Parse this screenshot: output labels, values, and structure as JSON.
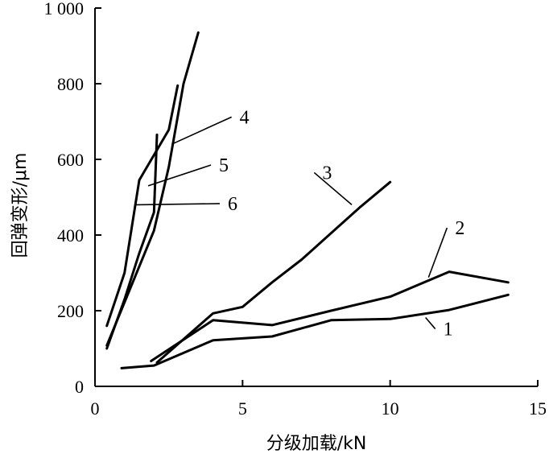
{
  "chart_data": {
    "type": "line",
    "title": "",
    "xlabel": "分级加载/kN",
    "ylabel": "回弹变形/μm",
    "xlim": [
      0,
      15
    ],
    "ylim": [
      0,
      1000
    ],
    "x_ticks": [
      0,
      5,
      10,
      15
    ],
    "x_tick_labels": [
      "0",
      "5",
      "10",
      "15"
    ],
    "y_ticks": [
      0,
      200,
      400,
      600,
      800,
      1000
    ],
    "y_tick_labels": [
      "0",
      "200",
      "400",
      "600",
      "800",
      "1 000"
    ],
    "grid": false,
    "legend": "none",
    "series": [
      {
        "label": "1",
        "label_anchor": [
          11.8,
          135
        ],
        "leader_from": [
          11.2,
          182
        ],
        "points": [
          [
            0.9,
            48
          ],
          [
            2.0,
            55
          ],
          [
            4.0,
            122
          ],
          [
            6.0,
            132
          ],
          [
            8.0,
            175
          ],
          [
            10.0,
            178
          ],
          [
            12.0,
            202
          ],
          [
            14.0,
            242
          ]
        ]
      },
      {
        "label": "2",
        "label_anchor": [
          12.2,
          402
        ],
        "leader_from": [
          11.3,
          288
        ],
        "points": [
          [
            1.9,
            67
          ],
          [
            4.0,
            175
          ],
          [
            6.0,
            162
          ],
          [
            8.0,
            200
          ],
          [
            10.0,
            237
          ],
          [
            12.0,
            303
          ],
          [
            14.0,
            275
          ]
        ]
      },
      {
        "label": "3",
        "label_anchor": [
          7.7,
          548
        ],
        "leader_from": [
          8.7,
          480
        ],
        "points": [
          [
            2.1,
            63
          ],
          [
            4.0,
            193
          ],
          [
            5.0,
            210
          ],
          [
            6.0,
            275
          ],
          [
            7.0,
            335
          ],
          [
            8.0,
            405
          ],
          [
            9.0,
            475
          ],
          [
            10.0,
            540
          ]
        ]
      },
      {
        "label": "4",
        "label_anchor": [
          4.9,
          695
        ],
        "leader_from": [
          2.6,
          640
        ],
        "points": [
          [
            0.4,
            108
          ],
          [
            2.0,
            412
          ],
          [
            2.5,
            580
          ],
          [
            3.0,
            800
          ],
          [
            3.5,
            935
          ]
        ]
      },
      {
        "label": "5",
        "label_anchor": [
          4.2,
          568
        ],
        "leader_from": [
          1.8,
          530
        ],
        "points": [
          [
            0.4,
            160
          ],
          [
            1.0,
            300
          ],
          [
            1.5,
            545
          ],
          [
            2.5,
            678
          ],
          [
            2.8,
            795
          ]
        ]
      },
      {
        "label": "6",
        "label_anchor": [
          4.5,
          466
        ],
        "leader_from": [
          1.4,
          480
        ],
        "points": [
          [
            0.4,
            100
          ],
          [
            1.0,
            230
          ],
          [
            1.5,
            352
          ],
          [
            2.0,
            460
          ],
          [
            2.1,
            665
          ]
        ]
      }
    ]
  }
}
